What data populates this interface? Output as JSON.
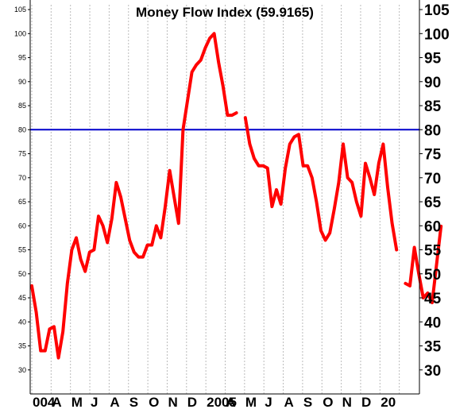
{
  "colors": {
    "background": "#ffffff",
    "series": "#ff0000",
    "reference_line": "#0000cc",
    "grid": "#bbbbbb",
    "axis": "#000000"
  },
  "chart_data": {
    "type": "line",
    "title": "Money Flow Index (59.9165)",
    "xlabel": "",
    "ylabel": "",
    "ylim": [
      25,
      106
    ],
    "grid": true,
    "y_ticks": [
      "105",
      "100",
      "95",
      "90",
      "85",
      "80",
      "75",
      "70",
      "65",
      "60",
      "55",
      "50",
      "45",
      "40",
      "35",
      "30"
    ],
    "x_tick_labels": [
      "004",
      "A",
      "M",
      "J",
      "A",
      "S",
      "O",
      "N",
      "D",
      "2005",
      "A",
      "M",
      "J",
      "A",
      "S",
      "O",
      "N",
      "D",
      "20"
    ],
    "reference_line": {
      "y": 80
    },
    "series": [
      {
        "segments": [
          [
            47.5,
            42.0,
            34.0,
            34.0,
            38.5,
            39.0,
            32.5,
            38.0,
            48.0,
            55.0,
            57.5,
            53.0,
            50.5,
            54.5,
            55.0,
            62.0,
            60.0,
            56.5,
            61.5,
            69.0,
            66.0,
            61.5,
            57.0,
            54.5,
            53.5,
            53.5,
            56.0,
            56.0,
            60.0,
            57.5,
            64.0,
            71.5,
            66.0,
            60.5,
            80.0,
            86.0,
            92.0,
            93.5,
            94.5,
            97.0,
            99.0,
            100.0,
            94.0,
            89.0,
            83.0,
            83.0,
            83.5
          ],
          [
            82.5,
            77.0,
            74.0,
            72.5,
            72.5,
            72.0,
            64.0,
            67.5,
            64.5,
            72.0,
            77.0,
            78.5,
            79.0,
            72.5,
            72.5,
            70.0,
            65.0,
            59.0,
            57.0,
            58.5,
            63.5,
            69.0,
            77.0,
            70.0,
            69.0,
            65.0,
            62.0,
            73.0,
            70.0,
            66.5,
            73.0,
            77.0,
            68.0,
            60.5,
            55.0
          ],
          [
            48.0,
            47.5,
            55.5,
            50.0,
            45.0,
            46.0,
            44.0,
            52.0,
            59.9
          ]
        ]
      }
    ]
  }
}
